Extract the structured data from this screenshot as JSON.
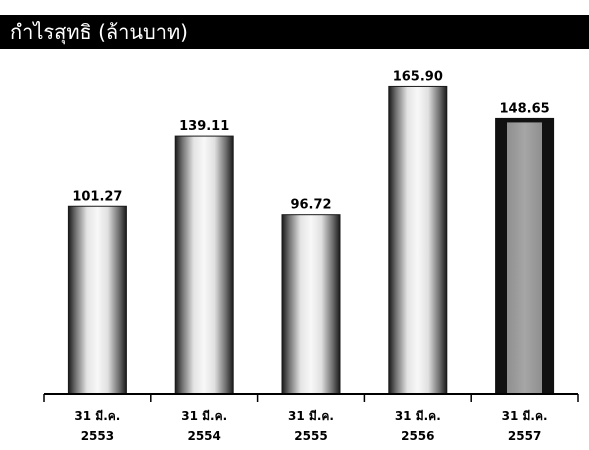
{
  "chart_data": {
    "type": "bar",
    "title": "กำไรสุทธิ (ล้านบาท)",
    "xlabel": "",
    "ylabel": "",
    "categories": [
      [
        "31 มี.ค.",
        "2553"
      ],
      [
        "31 มี.ค.",
        "2554"
      ],
      [
        "31 มี.ค.",
        "2555"
      ],
      [
        "31 มี.ค.",
        "2556"
      ],
      [
        "31 มี.ค.",
        "2557"
      ]
    ],
    "values": [
      101.27,
      139.11,
      96.72,
      165.9,
      148.65
    ],
    "value_labels": [
      "101.27",
      "139.11",
      "96.72",
      "165.90",
      "148.65"
    ],
    "ylim": [
      0,
      178
    ],
    "grid": false,
    "highlighted_index": 4,
    "colors": {
      "title_background": "#000000",
      "title_text": "#ffffff",
      "bar_edge": "#1a1a1a",
      "bar_center": "#f4f4f4",
      "highlight_edge": "#111111",
      "highlight_fill": "#8a8a8a",
      "axis": "#000000"
    }
  }
}
